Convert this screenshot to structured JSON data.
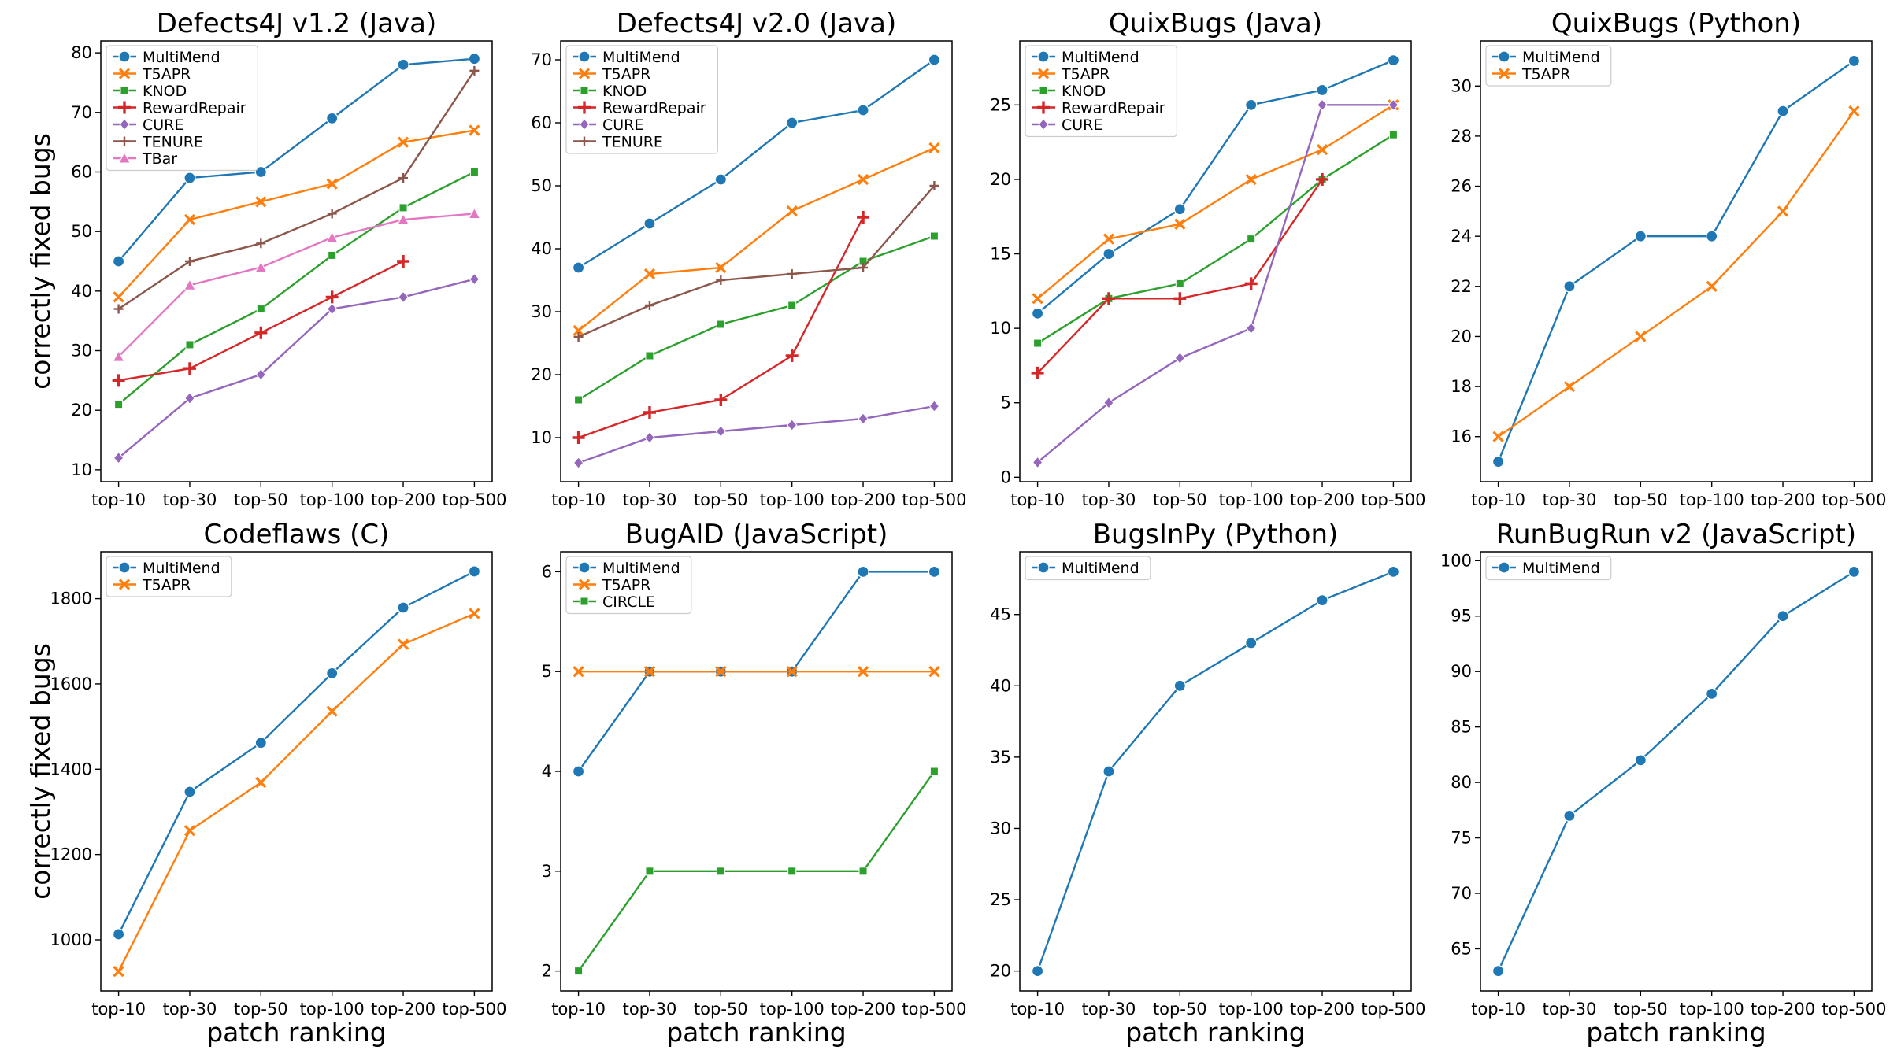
{
  "axis_labels": {
    "ylabel": "correctly fixed bugs",
    "xlabel": "patch ranking"
  },
  "colors": {
    "MultiMend": "#1f77b4",
    "T5APR": "#ff7f0e",
    "KNOD": "#2ca02c",
    "RewardRepair": "#d62728",
    "CURE": "#9467bd",
    "TENURE": "#8c564b",
    "TBar": "#e377c2",
    "CIRCLE": "#2ca02c"
  },
  "markers": {
    "MultiMend": "circle",
    "T5APR": "x",
    "KNOD": "square",
    "RewardRepair": "plus",
    "CURE": "diamond",
    "TENURE": "thin-plus",
    "TBar": "triangle",
    "CIRCLE": "square"
  },
  "chart_data": [
    {
      "type": "line",
      "title": "Defects4J v1.2 (Java)",
      "categories": [
        "top-10",
        "top-30",
        "top-50",
        "top-100",
        "top-200",
        "top-500"
      ],
      "ylim": [
        8,
        82
      ],
      "yticks": [
        10,
        20,
        30,
        40,
        50,
        60,
        70,
        80
      ],
      "legend": "upper-left",
      "series": [
        {
          "name": "MultiMend",
          "values": [
            45,
            59,
            60,
            69,
            78,
            79
          ]
        },
        {
          "name": "T5APR",
          "values": [
            39,
            52,
            55,
            58,
            65,
            67
          ]
        },
        {
          "name": "KNOD",
          "values": [
            21,
            31,
            37,
            46,
            54,
            60
          ]
        },
        {
          "name": "RewardRepair",
          "values": [
            25,
            27,
            33,
            39,
            45,
            null
          ]
        },
        {
          "name": "CURE",
          "values": [
            12,
            22,
            26,
            37,
            39,
            42
          ]
        },
        {
          "name": "TENURE",
          "values": [
            37,
            45,
            48,
            53,
            59,
            77
          ]
        },
        {
          "name": "TBar",
          "values": [
            29,
            41,
            44,
            49,
            52,
            53
          ]
        }
      ]
    },
    {
      "type": "line",
      "title": "Defects4J v2.0 (Java)",
      "categories": [
        "top-10",
        "top-30",
        "top-50",
        "top-100",
        "top-200",
        "top-500"
      ],
      "ylim": [
        3,
        73
      ],
      "yticks": [
        10,
        20,
        30,
        40,
        50,
        60,
        70
      ],
      "legend": "upper-left",
      "series": [
        {
          "name": "MultiMend",
          "values": [
            37,
            44,
            51,
            60,
            62,
            70
          ]
        },
        {
          "name": "T5APR",
          "values": [
            27,
            36,
            37,
            46,
            51,
            56
          ]
        },
        {
          "name": "KNOD",
          "values": [
            16,
            23,
            28,
            31,
            38,
            42
          ]
        },
        {
          "name": "RewardRepair",
          "values": [
            10,
            14,
            16,
            23,
            45,
            null
          ]
        },
        {
          "name": "CURE",
          "values": [
            6,
            10,
            11,
            12,
            13,
            15
          ]
        },
        {
          "name": "TENURE",
          "values": [
            26,
            31,
            35,
            36,
            37,
            50
          ]
        }
      ]
    },
    {
      "type": "line",
      "title": "QuixBugs (Java)",
      "categories": [
        "top-10",
        "top-30",
        "top-50",
        "top-100",
        "top-200",
        "top-500"
      ],
      "ylim": [
        -0.3,
        29.3
      ],
      "yticks": [
        0,
        5,
        10,
        15,
        20,
        25
      ],
      "legend": "upper-left",
      "series": [
        {
          "name": "MultiMend",
          "values": [
            11,
            15,
            18,
            25,
            26,
            28
          ]
        },
        {
          "name": "T5APR",
          "values": [
            12,
            16,
            17,
            20,
            22,
            25
          ]
        },
        {
          "name": "KNOD",
          "values": [
            9,
            12,
            13,
            16,
            20,
            23
          ]
        },
        {
          "name": "RewardRepair",
          "values": [
            7,
            12,
            12,
            13,
            20,
            null
          ]
        },
        {
          "name": "CURE",
          "values": [
            1,
            5,
            8,
            10,
            25,
            25
          ]
        }
      ]
    },
    {
      "type": "line",
      "title": "QuixBugs (Python)",
      "categories": [
        "top-10",
        "top-30",
        "top-50",
        "top-100",
        "top-200",
        "top-500"
      ],
      "ylim": [
        14.2,
        31.8
      ],
      "yticks": [
        16,
        18,
        20,
        22,
        24,
        26,
        28,
        30
      ],
      "legend": "upper-left",
      "series": [
        {
          "name": "MultiMend",
          "values": [
            15,
            22,
            24,
            24,
            29,
            31
          ]
        },
        {
          "name": "T5APR",
          "values": [
            16,
            18,
            20,
            22,
            25,
            29
          ]
        }
      ]
    },
    {
      "type": "line",
      "title": "Codeflaws (C)",
      "categories": [
        "top-10",
        "top-30",
        "top-50",
        "top-100",
        "top-200",
        "top-500"
      ],
      "ylim": [
        880,
        1910
      ],
      "yticks": [
        1000,
        1200,
        1400,
        1600,
        1800
      ],
      "legend": "upper-left",
      "series": [
        {
          "name": "MultiMend",
          "values": [
            1013,
            1347,
            1462,
            1625,
            1779,
            1864
          ]
        },
        {
          "name": "T5APR",
          "values": [
            926,
            1256,
            1369,
            1536,
            1693,
            1765
          ]
        }
      ]
    },
    {
      "type": "line",
      "title": "BugAID (JavaScript)",
      "categories": [
        "top-10",
        "top-30",
        "top-50",
        "top-100",
        "top-200",
        "top-500"
      ],
      "ylim": [
        1.8,
        6.2
      ],
      "yticks": [
        2,
        3,
        4,
        5,
        6
      ],
      "legend": "upper-left",
      "series": [
        {
          "name": "MultiMend",
          "values": [
            4,
            5,
            5,
            5,
            6,
            6
          ]
        },
        {
          "name": "T5APR",
          "values": [
            5,
            5,
            5,
            5,
            5,
            5
          ]
        },
        {
          "name": "CIRCLE",
          "values": [
            2,
            3,
            3,
            3,
            3,
            4
          ]
        }
      ]
    },
    {
      "type": "line",
      "title": "BugsInPy (Python)",
      "categories": [
        "top-10",
        "top-30",
        "top-50",
        "top-100",
        "top-200",
        "top-500"
      ],
      "ylim": [
        18.6,
        49.4
      ],
      "yticks": [
        20,
        25,
        30,
        35,
        40,
        45
      ],
      "legend": "upper-left",
      "series": [
        {
          "name": "MultiMend",
          "values": [
            20,
            34,
            40,
            43,
            46,
            48
          ]
        }
      ]
    },
    {
      "type": "line",
      "title": "RunBugRun v2 (JavaScript)",
      "categories": [
        "top-10",
        "top-30",
        "top-50",
        "top-100",
        "top-200",
        "top-500"
      ],
      "ylim": [
        61.2,
        100.8
      ],
      "yticks": [
        65,
        70,
        75,
        80,
        85,
        90,
        95,
        100
      ],
      "legend": "upper-left",
      "series": [
        {
          "name": "MultiMend",
          "values": [
            63,
            77,
            82,
            88,
            95,
            99
          ]
        }
      ]
    }
  ]
}
